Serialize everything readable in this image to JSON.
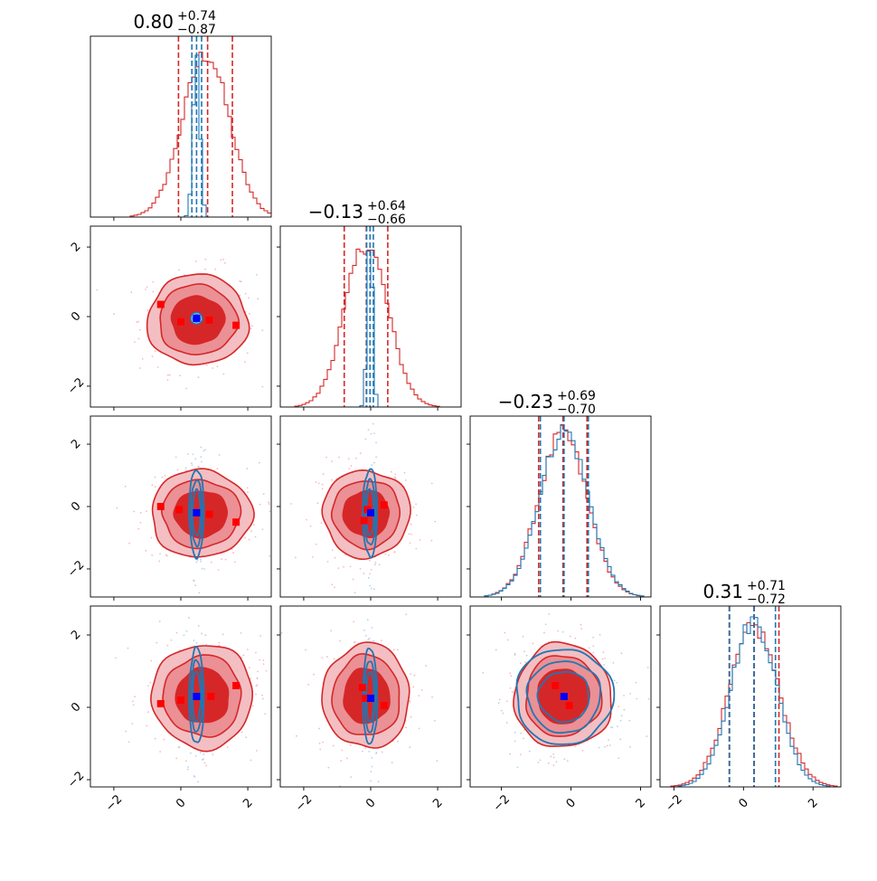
{
  "chart_data": {
    "type": "corner",
    "n_params": 4,
    "colors": {
      "primary": "#d62728",
      "secondary": "#1f77b4",
      "marker_red": "#ff0000",
      "marker_blue": "#0000ff"
    },
    "grid": false,
    "diagonal": [
      {
        "title_value": "0.80",
        "title_plus": "+0.74",
        "title_minus": "−0.87",
        "xlim": [
          -2.7,
          2.7
        ],
        "red_quantiles": [
          -0.07,
          0.8,
          1.54
        ],
        "blue_quantiles": [
          0.33,
          0.47,
          0.62
        ],
        "red_hist": {
          "mu": 0.75,
          "sigma": 0.7,
          "peak": 0.9
        },
        "blue_hist": {
          "mu": 0.47,
          "sigma": 0.1,
          "peak": 0.93
        }
      },
      {
        "title_value": "−0.13",
        "title_plus": "+0.64",
        "title_minus": "−0.66",
        "xlim": [
          -2.7,
          2.7
        ],
        "red_quantiles": [
          -0.79,
          -0.13,
          0.51
        ],
        "blue_quantiles": [
          -0.12,
          -0.02,
          0.08
        ],
        "red_hist": {
          "mu": -0.13,
          "sigma": 0.65,
          "peak": 0.9
        },
        "blue_hist": {
          "mu": -0.02,
          "sigma": 0.08,
          "peak": 0.96
        }
      },
      {
        "title_value": "−0.23",
        "title_plus": "+0.69",
        "title_minus": "−0.70",
        "xlim": [
          -2.9,
          2.3
        ],
        "red_quantiles": [
          -0.93,
          -0.23,
          0.46
        ],
        "blue_quantiles": [
          -0.88,
          -0.2,
          0.5
        ],
        "red_hist": {
          "mu": -0.23,
          "sigma": 0.7,
          "peak": 0.9
        },
        "blue_hist": {
          "mu": -0.2,
          "sigma": 0.7,
          "peak": 0.92
        }
      },
      {
        "title_value": "0.31",
        "title_plus": "+0.71",
        "title_minus": "−0.72",
        "xlim": [
          -2.4,
          2.8
        ],
        "red_quantiles": [
          -0.41,
          0.31,
          1.02
        ],
        "blue_quantiles": [
          -0.4,
          0.3,
          0.92
        ],
        "red_hist": {
          "mu": 0.31,
          "sigma": 0.72,
          "peak": 0.88
        },
        "blue_hist": {
          "mu": 0.3,
          "sigma": 0.66,
          "peak": 0.92
        }
      }
    ],
    "ylims": [
      null,
      [
        -2.6,
        2.6
      ],
      [
        -2.9,
        2.9
      ],
      [
        -2.2,
        2.8
      ]
    ],
    "pairs": [
      {
        "row": 1,
        "col": 0,
        "red": {
          "cx": 0.5,
          "cy": -0.1,
          "sx": 0.75,
          "sy": 0.65
        },
        "blue": {
          "cx": 0.47,
          "cy": -0.05,
          "sx": 0.11,
          "sy": 0.08
        },
        "red_markers": [
          [
            -0.6,
            0.35
          ],
          [
            0.0,
            -0.15
          ],
          [
            0.85,
            -0.1
          ],
          [
            1.65,
            -0.25
          ]
        ],
        "blue_marker": [
          0.47,
          -0.05
        ]
      },
      {
        "row": 2,
        "col": 0,
        "red": {
          "cx": 0.6,
          "cy": -0.23,
          "sx": 0.75,
          "sy": 0.7
        },
        "blue": {
          "cx": 0.47,
          "cy": -0.2,
          "sx": 0.11,
          "sy": 0.7
        },
        "red_markers": [
          [
            -0.6,
            0.0
          ],
          [
            -0.05,
            -0.1
          ],
          [
            0.85,
            -0.25
          ],
          [
            1.65,
            -0.5
          ]
        ],
        "blue_marker": [
          0.47,
          -0.2
        ]
      },
      {
        "row": 2,
        "col": 1,
        "red": {
          "cx": -0.13,
          "cy": -0.23,
          "sx": 0.65,
          "sy": 0.7
        },
        "blue": {
          "cx": -0.02,
          "cy": -0.2,
          "sx": 0.08,
          "sy": 0.7
        },
        "red_markers": [
          [
            -0.2,
            -0.45
          ],
          [
            -0.1,
            -0.1
          ],
          [
            0.4,
            0.05
          ]
        ],
        "blue_marker": [
          0.0,
          -0.2
        ]
      },
      {
        "row": 3,
        "col": 0,
        "red": {
          "cx": 0.65,
          "cy": 0.31,
          "sx": 0.75,
          "sy": 0.72
        },
        "blue": {
          "cx": 0.47,
          "cy": 0.3,
          "sx": 0.11,
          "sy": 0.66
        },
        "red_markers": [
          [
            -0.6,
            0.1
          ],
          [
            0.0,
            0.2
          ],
          [
            0.9,
            0.3
          ],
          [
            1.65,
            0.6
          ]
        ],
        "blue_marker": [
          0.47,
          0.3
        ]
      },
      {
        "row": 3,
        "col": 1,
        "red": {
          "cx": -0.13,
          "cy": 0.31,
          "sx": 0.65,
          "sy": 0.72
        },
        "blue": {
          "cx": -0.02,
          "cy": 0.3,
          "sx": 0.08,
          "sy": 0.66
        },
        "red_markers": [
          [
            -0.25,
            0.55
          ],
          [
            -0.15,
            0.25
          ],
          [
            0.4,
            0.05
          ]
        ],
        "blue_marker": [
          0.0,
          0.25
        ]
      },
      {
        "row": 3,
        "col": 2,
        "red": {
          "cx": -0.23,
          "cy": 0.31,
          "sx": 0.7,
          "sy": 0.72
        },
        "blue": {
          "cx": -0.2,
          "cy": 0.3,
          "sx": 0.7,
          "sy": 0.66
        },
        "red_markers": [
          [
            -0.45,
            0.6
          ],
          [
            -0.05,
            0.05
          ]
        ],
        "blue_marker": [
          -0.2,
          0.3
        ]
      }
    ],
    "x_ticks": [
      {
        "values": [
          -2,
          0,
          2
        ],
        "labels": [
          "−2",
          "0",
          "2"
        ]
      },
      {
        "values": [
          -2,
          0,
          2
        ],
        "labels": [
          "−2",
          "0",
          "2"
        ]
      },
      {
        "values": [
          -2,
          0,
          2
        ],
        "labels": [
          "−2",
          "0",
          "2"
        ]
      },
      {
        "values": [
          -2,
          0,
          2
        ],
        "labels": [
          "−2",
          "0",
          "2"
        ]
      }
    ],
    "y_ticks": [
      null,
      {
        "values": [
          -2,
          0,
          2
        ],
        "labels": [
          "−2",
          "0",
          "2"
        ]
      },
      {
        "values": [
          -2,
          0,
          2
        ],
        "labels": [
          "−2",
          "0",
          "2"
        ]
      },
      {
        "values": [
          -2,
          0,
          2
        ],
        "labels": [
          "−2",
          "0",
          "2"
        ]
      }
    ]
  }
}
